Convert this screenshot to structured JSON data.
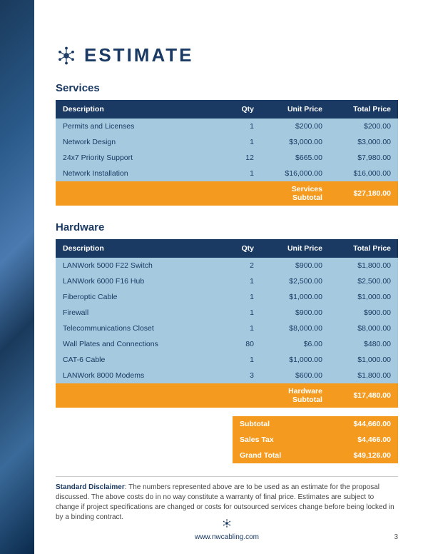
{
  "colors": {
    "navy": "#1a3a63",
    "lightblue": "#a5c9df",
    "orange": "#f39a1f",
    "white": "#ffffff",
    "text": "#333333"
  },
  "header": {
    "title": "ESTIMATE"
  },
  "sections": {
    "services": {
      "title": "Services",
      "columns": [
        "Description",
        "Qty",
        "Unit Price",
        "Total Price"
      ],
      "rows": [
        {
          "desc": "Permits and Licenses",
          "qty": "1",
          "unit": "$200.00",
          "total": "$200.00"
        },
        {
          "desc": "Network Design",
          "qty": "1",
          "unit": "$3,000.00",
          "total": "$3,000.00"
        },
        {
          "desc": "24x7 Priority Support",
          "qty": "12",
          "unit": "$665.00",
          "total": "$7,980.00"
        },
        {
          "desc": "Network Installation",
          "qty": "1",
          "unit": "$16,000.00",
          "total": "$16,000.00"
        }
      ],
      "subtotal_label": "Services Subtotal",
      "subtotal_value": "$27,180.00"
    },
    "hardware": {
      "title": "Hardware",
      "columns": [
        "Description",
        "Qty",
        "Unit Price",
        "Total Price"
      ],
      "rows": [
        {
          "desc": "LANWork 5000 F22 Switch",
          "qty": "2",
          "unit": "$900.00",
          "total": "$1,800.00"
        },
        {
          "desc": "LANWork 6000 F16 Hub",
          "qty": "1",
          "unit": "$2,500.00",
          "total": "$2,500.00"
        },
        {
          "desc": "Fiberoptic Cable",
          "qty": "1",
          "unit": "$1,000.00",
          "total": "$1,000.00"
        },
        {
          "desc": "Firewall",
          "qty": "1",
          "unit": "$900.00",
          "total": "$900.00"
        },
        {
          "desc": "Telecommunications Closet",
          "qty": "1",
          "unit": "$8,000.00",
          "total": "$8,000.00"
        },
        {
          "desc": "Wall Plates and Connections",
          "qty": "80",
          "unit": "$6.00",
          "total": "$480.00"
        },
        {
          "desc": "CAT-6 Cable",
          "qty": "1",
          "unit": "$1,000.00",
          "total": "$1,000.00"
        },
        {
          "desc": "LANWork 8000 Modems",
          "qty": "3",
          "unit": "$600.00",
          "total": "$1,800.00"
        }
      ],
      "subtotal_label": "Hardware Subtotal",
      "subtotal_value": "$17,480.00"
    }
  },
  "totals": {
    "rows": [
      {
        "label": "Subtotal",
        "value": "$44,660.00"
      },
      {
        "label": "Sales Tax",
        "value": "$4,466.00"
      },
      {
        "label": "Grand Total",
        "value": "$49,126.00"
      }
    ]
  },
  "disclaimer": {
    "label": "Standard Disclaimer",
    "text": ": The numbers represented above are to be used as an estimate for the proposal discussed. The above costs do in no way constitute a warranty of final price. Estimates are subject to change if project specifications are changed or costs for outsourced services change before being locked in by a binding contract."
  },
  "footer": {
    "url": "www.nwcabling.com",
    "page": "3"
  }
}
